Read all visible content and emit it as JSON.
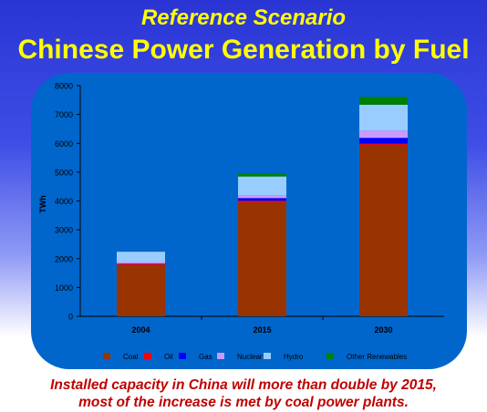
{
  "header": {
    "subtitle": "Reference Scenario",
    "title": "Chinese Power Generation by Fuel"
  },
  "caption": {
    "line1": "Installed capacity in China will more than double by 2015,",
    "line2": "most of the increase is met by coal power plants."
  },
  "colors": {
    "panel": "#0066cc",
    "title": "#ffff00",
    "caption": "#c00000"
  },
  "chart_data": {
    "type": "bar",
    "stacked": true,
    "categories": [
      "2004",
      "2015",
      "2030"
    ],
    "ylabel": "TWh",
    "xlabel": "",
    "ylim": [
      0,
      8000
    ],
    "yticks": [
      0,
      1000,
      2000,
      3000,
      4000,
      5000,
      6000,
      7000,
      8000
    ],
    "grid": false,
    "legend_position": "bottom",
    "series": [
      {
        "name": "Coal",
        "color": "#993300",
        "values": [
          1780,
          3950,
          5950
        ]
      },
      {
        "name": "Oil",
        "color": "#ff0000",
        "values": [
          40,
          60,
          40
        ]
      },
      {
        "name": "Gas",
        "color": "#0000ff",
        "values": [
          10,
          90,
          200
        ]
      },
      {
        "name": "Nuclear",
        "color": "#cc99ff",
        "values": [
          50,
          100,
          250
        ]
      },
      {
        "name": "Hydro",
        "color": "#99ccff",
        "values": [
          360,
          650,
          900
        ]
      },
      {
        "name": "Other Renewables",
        "color": "#008000",
        "values": [
          0,
          100,
          270
        ]
      }
    ]
  }
}
